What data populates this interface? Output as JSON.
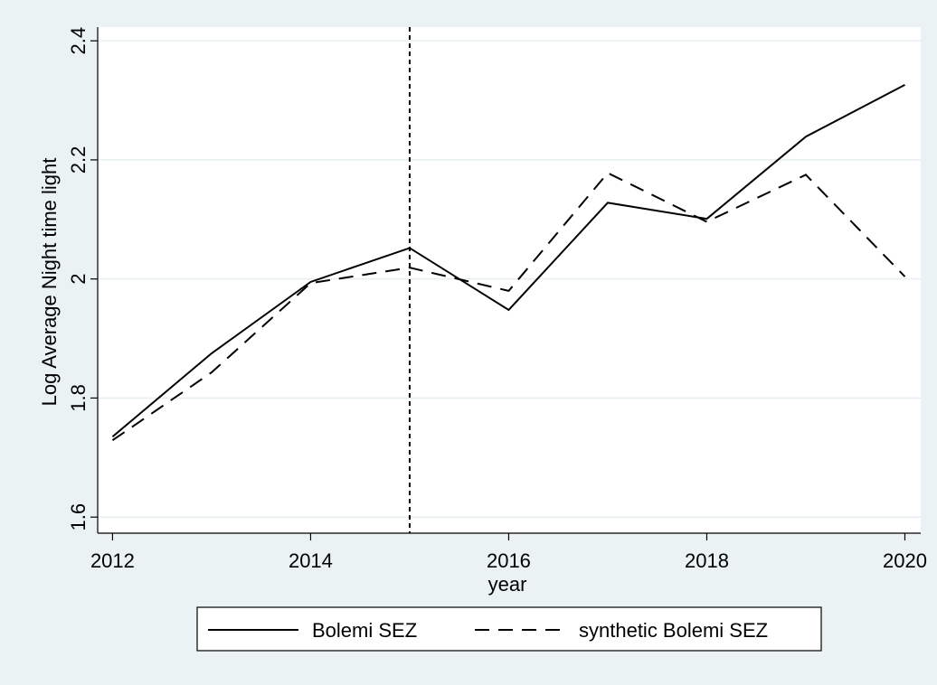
{
  "chart_data": {
    "type": "line",
    "x_label": "year",
    "y_label": "Log Average Night time light",
    "x": [
      2012,
      2013,
      2014,
      2015,
      2016,
      2017,
      2018,
      2019,
      2020
    ],
    "series": [
      {
        "name": "Bolemi SEZ",
        "color": "#000000",
        "style": "solid",
        "values": [
          1.735,
          1.875,
          1.995,
          2.052,
          1.948,
          2.128,
          2.101,
          2.239,
          2.326
        ]
      },
      {
        "name": "synthetic Bolemi SEZ",
        "color": "#000000",
        "style": "dashed",
        "values": [
          1.729,
          1.843,
          1.993,
          2.019,
          1.98,
          2.178,
          2.096,
          2.175,
          2.004
        ]
      }
    ],
    "xline": 2015,
    "xlim": [
      2011.85,
      2020.16
    ],
    "ylim": [
      1.573,
      2.423
    ],
    "xticks": [
      2012,
      2014,
      2016,
      2018,
      2020
    ],
    "yticks": [
      1.6,
      1.8,
      2,
      2.2,
      2.4
    ],
    "grid": true,
    "legend": "bottom"
  }
}
